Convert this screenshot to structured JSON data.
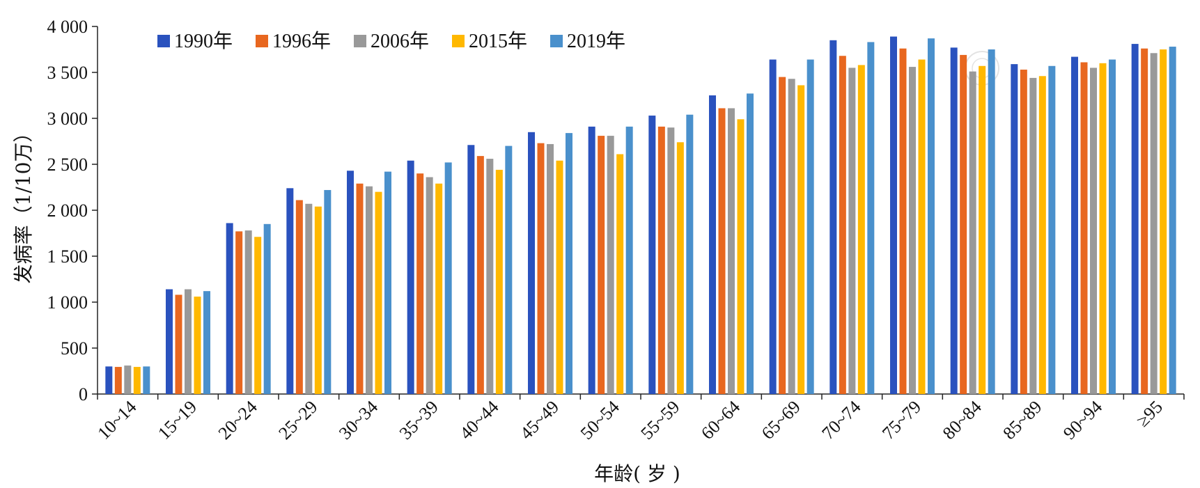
{
  "chart_data": {
    "type": "bar",
    "title": "",
    "xlabel": "年龄( 岁 )",
    "ylabel": "发病率（1/10万）",
    "ylim": [
      0,
      4000
    ],
    "yticks": [
      0,
      500,
      1000,
      1500,
      2000,
      2500,
      3000,
      3500,
      4000
    ],
    "ytick_labels": [
      "0",
      "500",
      "1 000",
      "1 500",
      "2 000",
      "2 500",
      "3 000",
      "3 500",
      "4 000"
    ],
    "grid": false,
    "legend_position": "top-left",
    "categories": [
      "10~14",
      "15~19",
      "20~24",
      "25~29",
      "30~34",
      "35~39",
      "40~44",
      "45~49",
      "50~54",
      "55~59",
      "60~64",
      "65~69",
      "70~74",
      "75~79",
      "80~84",
      "85~89",
      "90~94",
      "≥95"
    ],
    "series": [
      {
        "name": "1990年",
        "color": "#2a52be",
        "values": [
          300,
          1140,
          1860,
          2240,
          2430,
          2540,
          2710,
          2850,
          2910,
          3030,
          3250,
          3640,
          3850,
          3890,
          3770,
          3590,
          3670,
          3810
        ]
      },
      {
        "name": "1996年",
        "color": "#e8671f",
        "values": [
          295,
          1080,
          1770,
          2110,
          2290,
          2400,
          2590,
          2730,
          2810,
          2910,
          3110,
          3450,
          3680,
          3760,
          3690,
          3530,
          3610,
          3760
        ]
      },
      {
        "name": "2006年",
        "color": "#999999",
        "values": [
          310,
          1140,
          1780,
          2070,
          2260,
          2360,
          2560,
          2720,
          2810,
          2900,
          3110,
          3430,
          3550,
          3560,
          3510,
          3440,
          3550,
          3710
        ]
      },
      {
        "name": "2015年",
        "color": "#ffb800",
        "values": [
          295,
          1060,
          1710,
          2040,
          2200,
          2290,
          2440,
          2540,
          2610,
          2740,
          2990,
          3360,
          3580,
          3640,
          3570,
          3460,
          3600,
          3750
        ]
      },
      {
        "name": "2019年",
        "color": "#4a90cc",
        "values": [
          300,
          1120,
          1850,
          2220,
          2420,
          2520,
          2700,
          2840,
          2910,
          3040,
          3270,
          3640,
          3830,
          3870,
          3750,
          3570,
          3640,
          3780
        ]
      }
    ]
  }
}
